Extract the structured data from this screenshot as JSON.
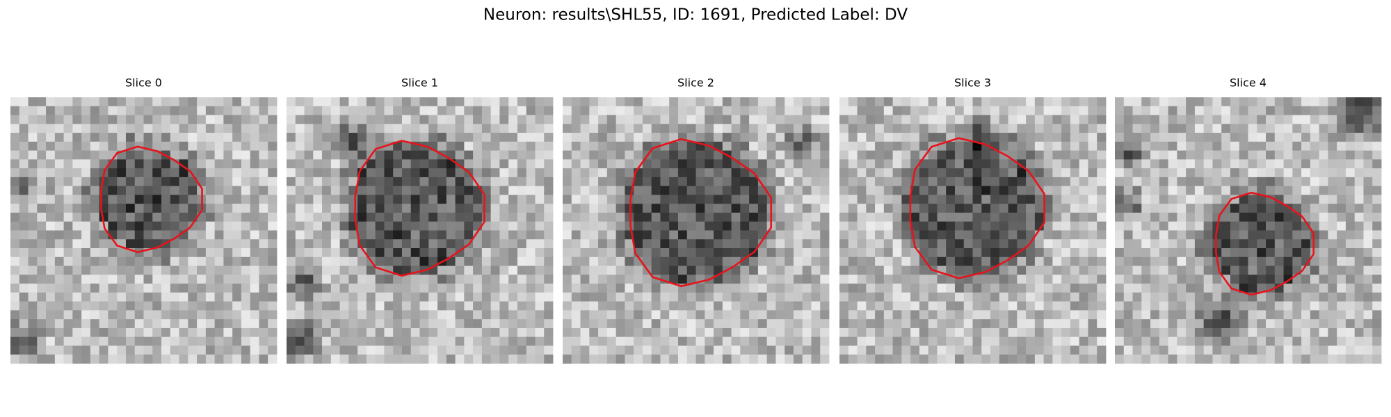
{
  "title": "Neuron: results\\SHL55, ID: 1691, Predicted Label: DV",
  "panels": [
    {
      "title": "Slice 0"
    },
    {
      "title": "Slice 1"
    },
    {
      "title": "Slice 2"
    },
    {
      "title": "Slice 3"
    },
    {
      "title": "Slice 4"
    }
  ]
}
